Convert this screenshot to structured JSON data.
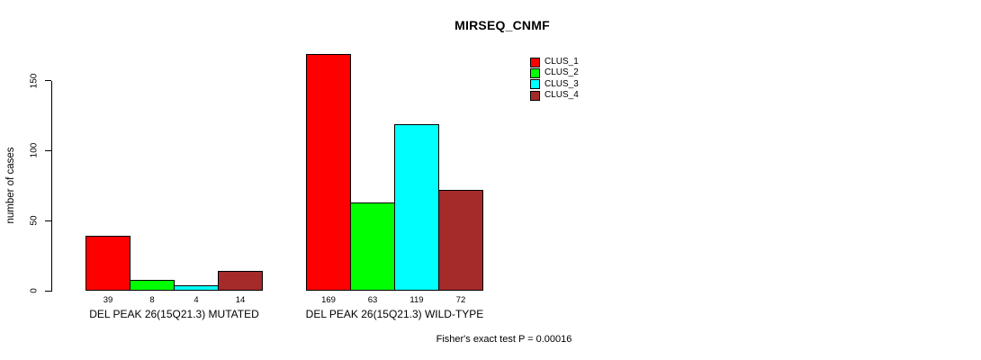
{
  "page": {
    "background": "#ffffff"
  },
  "chart_data": {
    "type": "bar",
    "title": "MIRSEQ_CNMF",
    "ylabel": "number of cases",
    "xlabel": "",
    "yticks": [
      0,
      50,
      100,
      150
    ],
    "ylim": [
      0,
      175
    ],
    "grid": false,
    "legend_position": "top-right",
    "categories": [
      "DEL PEAK 26(15Q21.3) MUTATED",
      "DEL PEAK 26(15Q21.3) WILD-TYPE"
    ],
    "series": [
      {
        "name": "CLUS_1",
        "color": "#FF0000",
        "values": [
          39,
          169
        ]
      },
      {
        "name": "CLUS_2",
        "color": "#00FF00",
        "values": [
          8,
          63
        ]
      },
      {
        "name": "CLUS_3",
        "color": "#00FFFF",
        "values": [
          4,
          119
        ]
      },
      {
        "name": "CLUS_4",
        "color": "#A52A2A",
        "values": [
          14,
          72
        ]
      }
    ],
    "bar_value_labels": [
      [
        39,
        8,
        4,
        14
      ],
      [
        169,
        63,
        119,
        72
      ]
    ],
    "annotation": "Fisher's exact test P = 0.00016"
  }
}
